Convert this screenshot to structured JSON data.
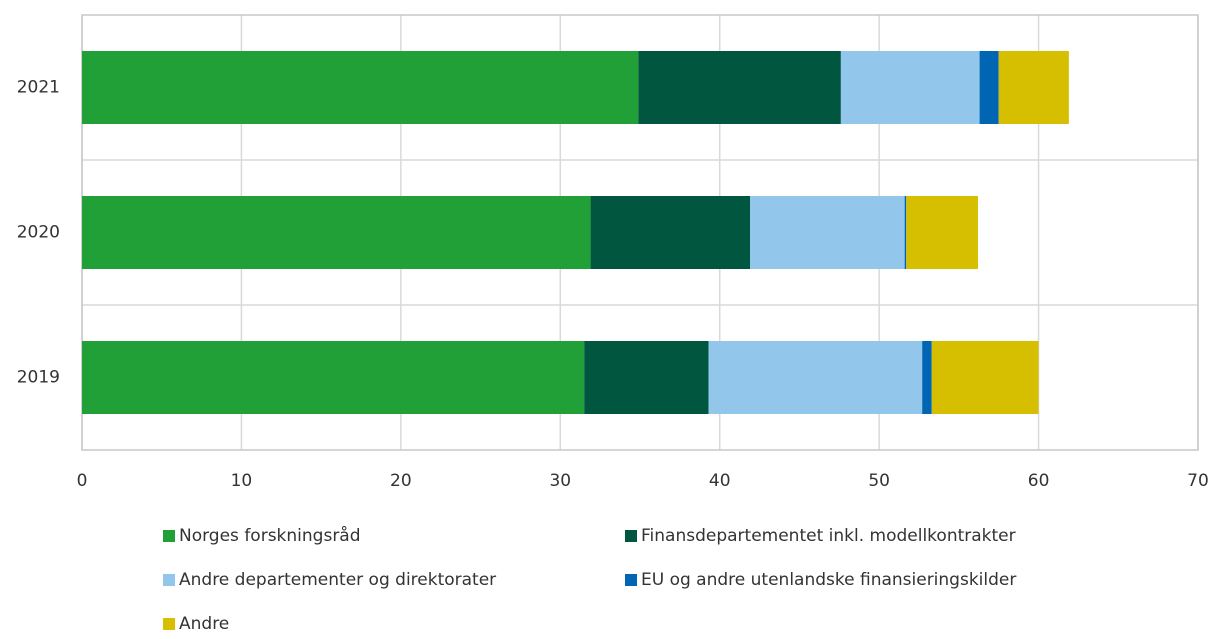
{
  "chart_data": {
    "type": "stacked_bar_horizontal",
    "categories": [
      "2021",
      "2020",
      "2019"
    ],
    "series": [
      {
        "name": "Norges forskningsråd",
        "color": "#21a038",
        "values": [
          34.9,
          31.9,
          31.5
        ]
      },
      {
        "name": "Finansdepartementet inkl. modellkontrakter",
        "color": "#00563f",
        "values": [
          12.7,
          10.0,
          7.8
        ]
      },
      {
        "name": "Andre departementer og direktorater",
        "color": "#93c6eb",
        "values": [
          8.7,
          9.7,
          13.4
        ]
      },
      {
        "name": "EU og andre utenlandske finansieringskilder",
        "color": "#0066b3",
        "values": [
          1.2,
          0.1,
          0.6
        ]
      },
      {
        "name": "Andre",
        "color": "#d6bf00",
        "values": [
          4.4,
          4.5,
          6.7
        ]
      }
    ],
    "xlim": [
      0,
      70
    ],
    "xticks": [
      0,
      10,
      20,
      30,
      40,
      50,
      60,
      70
    ],
    "grid": true
  }
}
